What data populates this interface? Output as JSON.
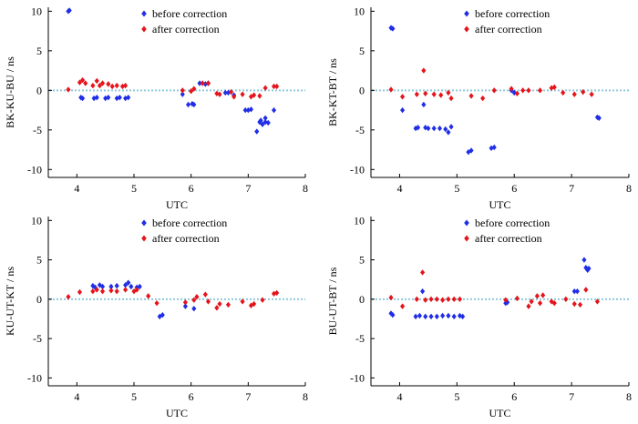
{
  "colors": {
    "before": "#1f2ee6",
    "after": "#e5141b",
    "zero_line": "#8ec9dc",
    "axis": "#000000"
  },
  "chart_data": [
    {
      "type": "scatter",
      "ylabel": "BK-KU-BU / ns",
      "xlabel": "UTC",
      "xlim": [
        3.5,
        8
      ],
      "ylim": [
        -11,
        10.5
      ],
      "xticks": [
        "4",
        "5",
        "6",
        "7",
        "8"
      ],
      "yticks": [
        "10",
        "5",
        "0",
        "-5",
        "-10"
      ],
      "legend": {
        "position": "top-right",
        "entries": [
          "before correction",
          "after correction"
        ]
      },
      "zero_line": true,
      "series": [
        {
          "name": "before correction",
          "x": [
            3.85,
            3.87,
            4.07,
            4.1,
            4.3,
            4.35,
            4.5,
            4.55,
            4.7,
            4.75,
            4.85,
            4.9,
            5.85,
            5.95,
            6.02,
            6.05,
            6.15,
            6.25,
            6.3,
            6.6,
            6.65,
            6.75,
            6.95,
            7.0,
            7.05,
            7.15,
            7.2,
            7.22,
            7.25,
            7.3,
            7.3,
            7.35,
            7.45
          ],
          "y": [
            10.0,
            10.1,
            -0.9,
            -1.0,
            -1.0,
            -0.9,
            -1.0,
            -0.9,
            -1.0,
            -0.9,
            -1.0,
            -0.9,
            -0.5,
            -1.8,
            -1.7,
            -1.8,
            0.9,
            0.8,
            0.9,
            -0.3,
            -0.3,
            -0.6,
            -2.5,
            -2.5,
            -2.4,
            -5.2,
            -4.0,
            -3.8,
            -4.3,
            -4.0,
            -3.5,
            -4.1,
            -2.5
          ]
        },
        {
          "name": "after correction",
          "x": [
            3.85,
            4.05,
            4.1,
            4.15,
            4.28,
            4.35,
            4.4,
            4.45,
            4.55,
            4.62,
            4.7,
            4.8,
            4.85,
            5.85,
            6.0,
            6.05,
            6.2,
            6.3,
            6.45,
            6.5,
            6.7,
            6.75,
            6.9,
            7.05,
            7.1,
            7.2,
            7.3,
            7.45,
            7.5
          ],
          "y": [
            0.1,
            1.0,
            1.3,
            0.9,
            0.6,
            1.2,
            0.6,
            0.9,
            0.8,
            0.5,
            0.6,
            0.5,
            0.6,
            0.0,
            -0.1,
            0.2,
            0.9,
            0.9,
            -0.4,
            -0.5,
            -0.2,
            -0.8,
            -0.5,
            -0.8,
            -0.6,
            -0.7,
            0.3,
            0.5,
            0.5
          ]
        }
      ]
    },
    {
      "type": "scatter",
      "ylabel": "BK-KT-BT / ns",
      "xlabel": "UTC",
      "xlim": [
        3.5,
        8
      ],
      "ylim": [
        -11,
        10.5
      ],
      "xticks": [
        "4",
        "5",
        "6",
        "7",
        "8"
      ],
      "yticks": [
        "10",
        "5",
        "0",
        "-5",
        "-10"
      ],
      "legend": {
        "position": "top-right",
        "entries": [
          "before correction",
          "after correction"
        ]
      },
      "zero_line": true,
      "series": [
        {
          "name": "before correction",
          "x": [
            3.85,
            3.88,
            4.05,
            4.28,
            4.32,
            4.42,
            4.45,
            4.5,
            4.6,
            4.7,
            4.8,
            4.85,
            4.9,
            5.2,
            5.25,
            5.6,
            5.65,
            5.95,
            6.0,
            7.45,
            7.48
          ],
          "y": [
            7.9,
            7.8,
            -2.5,
            -4.8,
            -4.7,
            -1.8,
            -4.7,
            -4.8,
            -4.8,
            -4.8,
            -4.9,
            -5.3,
            -4.6,
            -7.8,
            -7.6,
            -7.3,
            -7.2,
            0.0,
            -0.3,
            -3.4,
            -3.5
          ]
        },
        {
          "name": "after correction",
          "x": [
            3.85,
            4.05,
            4.3,
            4.42,
            4.45,
            4.6,
            4.72,
            4.85,
            4.9,
            5.25,
            5.45,
            5.65,
            5.95,
            6.05,
            6.15,
            6.25,
            6.45,
            6.65,
            6.7,
            6.85,
            7.05,
            7.2,
            7.35
          ],
          "y": [
            0.1,
            -0.8,
            -0.5,
            2.5,
            -0.4,
            -0.5,
            -0.6,
            -0.3,
            -1.0,
            -0.7,
            -1.0,
            0.0,
            0.2,
            -0.4,
            0.0,
            0.0,
            0.0,
            0.3,
            0.4,
            -0.3,
            -0.5,
            -0.2,
            -0.5
          ]
        }
      ]
    },
    {
      "type": "scatter",
      "ylabel": "KU-UT-KT / ns",
      "xlabel": "UTC",
      "xlim": [
        3.5,
        8
      ],
      "ylim": [
        -11,
        10.5
      ],
      "xticks": [
        "4",
        "5",
        "6",
        "7",
        "8"
      ],
      "yticks": [
        "10",
        "5",
        "0",
        "-5",
        "-10"
      ],
      "legend": {
        "position": "top-right",
        "entries": [
          "before correction",
          "after correction"
        ]
      },
      "zero_line": true,
      "series": [
        {
          "name": "before correction",
          "x": [
            4.28,
            4.32,
            4.4,
            4.45,
            4.6,
            4.7,
            4.85,
            4.9,
            4.95,
            5.05,
            5.1,
            5.45,
            5.5,
            5.9,
            6.05
          ],
          "y": [
            1.7,
            1.5,
            1.8,
            1.6,
            1.6,
            1.7,
            1.8,
            2.1,
            1.6,
            1.5,
            1.6,
            -2.2,
            -2.0,
            -0.9,
            -1.2
          ]
        },
        {
          "name": "after correction",
          "x": [
            3.85,
            4.05,
            4.28,
            4.35,
            4.45,
            4.6,
            4.7,
            4.85,
            5.0,
            5.05,
            5.25,
            5.4,
            5.9,
            6.05,
            6.1,
            6.25,
            6.3,
            6.45,
            6.5,
            6.65,
            6.9,
            7.05,
            7.1,
            7.25,
            7.45,
            7.5
          ],
          "y": [
            0.3,
            0.9,
            1.0,
            1.2,
            1.0,
            1.1,
            1.0,
            1.2,
            1.0,
            1.2,
            0.4,
            -0.5,
            -0.4,
            -0.1,
            0.3,
            0.6,
            -0.3,
            -1.1,
            -0.6,
            -0.7,
            -0.3,
            -0.8,
            -0.6,
            -0.1,
            0.7,
            0.8
          ]
        }
      ]
    },
    {
      "type": "scatter",
      "ylabel": "BU-UT-BT / ns",
      "xlabel": "UTC",
      "xlim": [
        3.5,
        8
      ],
      "ylim": [
        -11,
        10.5
      ],
      "xticks": [
        "4",
        "5",
        "6",
        "7",
        "8"
      ],
      "yticks": [
        "10",
        "5",
        "0",
        "-5",
        "-10"
      ],
      "legend": {
        "position": "top-right",
        "entries": [
          "before correction",
          "after correction"
        ]
      },
      "zero_line": true,
      "series": [
        {
          "name": "before correction",
          "x": [
            3.85,
            3.88,
            4.28,
            4.35,
            4.4,
            4.45,
            4.55,
            4.65,
            4.75,
            4.85,
            4.95,
            5.05,
            5.1,
            5.85,
            5.88,
            7.05,
            7.1,
            7.22,
            7.25,
            7.28,
            7.3
          ],
          "y": [
            -1.8,
            -2.0,
            -2.2,
            -2.1,
            1.0,
            -2.2,
            -2.2,
            -2.2,
            -2.1,
            -2.1,
            -2.2,
            -2.1,
            -2.2,
            -0.5,
            -0.4,
            1.0,
            1.0,
            5.0,
            4.0,
            3.7,
            3.9
          ]
        },
        {
          "name": "after correction",
          "x": [
            3.85,
            4.05,
            4.3,
            4.4,
            4.45,
            4.55,
            4.65,
            4.75,
            4.85,
            4.95,
            5.05,
            5.85,
            6.05,
            6.25,
            6.3,
            6.4,
            6.45,
            6.5,
            6.65,
            6.7,
            6.9,
            7.05,
            7.15,
            7.25,
            7.45
          ],
          "y": [
            0.2,
            -0.9,
            0.0,
            3.4,
            -0.1,
            0.0,
            0.0,
            -0.1,
            0.0,
            0.0,
            0.0,
            -0.1,
            0.1,
            -0.9,
            -0.3,
            0.4,
            -0.5,
            0.5,
            -0.3,
            -0.5,
            0.0,
            -0.6,
            -0.7,
            1.2,
            -0.3
          ]
        }
      ]
    }
  ]
}
